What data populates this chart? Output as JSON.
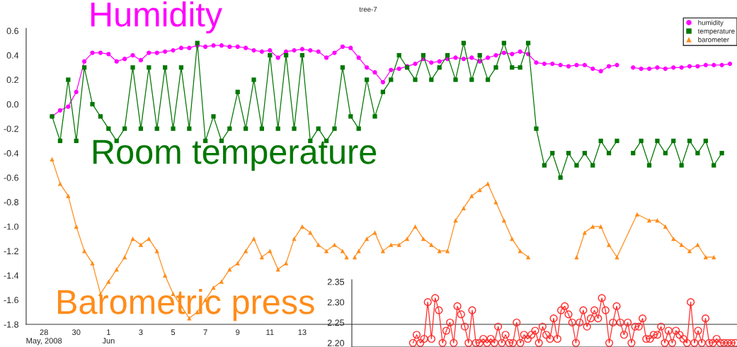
{
  "chart_data": [
    {
      "type": "line",
      "title": "tree-7",
      "annotations": [
        "Humidity",
        "Room temperature",
        "Barometric press"
      ],
      "x": [
        "2008-05-28T12:00",
        "2008-05-29T00:00",
        "2008-05-29T12:00",
        "2008-05-30T00:00",
        "2008-05-30T12:00",
        "2008-05-31T00:00",
        "2008-05-31T12:00",
        "2008-06-01T00:00",
        "2008-06-01T12:00",
        "2008-06-02T00:00",
        "2008-06-02T12:00",
        "2008-06-03T00:00",
        "2008-06-03T12:00",
        "2008-06-04T00:00",
        "2008-06-04T12:00",
        "2008-06-05T00:00",
        "2008-06-05T12:00",
        "2008-06-06T00:00",
        "2008-06-06T12:00",
        "2008-06-07T00:00",
        "2008-06-07T12:00",
        "2008-06-08T00:00",
        "2008-06-08T12:00",
        "2008-06-09T00:00",
        "2008-06-09T12:00",
        "2008-06-10T00:00",
        "2008-06-10T12:00",
        "2008-06-11T00:00",
        "2008-06-11T12:00",
        "2008-06-12T00:00",
        "2008-06-12T12:00",
        "2008-06-13T00:00",
        "2008-06-13T12:00",
        "2008-06-14T00:00",
        "2008-06-14T12:00",
        "2008-06-15T00:00",
        "2008-06-15T12:00",
        "2008-06-16T00:00",
        "2008-06-16T12:00",
        "2008-06-17T00:00",
        "2008-06-17T12:00",
        "2008-06-18T00:00",
        "2008-06-18T12:00",
        "2008-06-19T00:00",
        "2008-06-19T12:00",
        "2008-06-20T00:00",
        "2008-06-20T12:00",
        "2008-06-21T00:00",
        "2008-06-21T12:00",
        "2008-06-22T00:00",
        "2008-06-22T12:00",
        "2008-06-23T00:00",
        "2008-06-23T12:00",
        "2008-06-24T00:00",
        "2008-06-24T12:00",
        "2008-06-25T00:00",
        "2008-06-25T12:00",
        "2008-06-26T00:00",
        "2008-06-26T12:00",
        "2008-06-27T00:00",
        "2008-06-27T12:00",
        "2008-06-28T00:00",
        "2008-06-28T12:00",
        "2008-06-29T00:00",
        "2008-06-29T12:00",
        "2008-06-30T00:00",
        "2008-06-30T12:00",
        "2008-07-01T00:00",
        "2008-07-01T12:00",
        "2008-07-02T00:00",
        "2008-07-02T12:00",
        "2008-07-03T00:00",
        "2008-07-03T12:00",
        "2008-07-04T00:00",
        "2008-07-04T12:00",
        "2008-07-05T00:00",
        "2008-07-05T12:00",
        "2008-07-06T00:00",
        "2008-07-06T12:00",
        "2008-07-07T00:00",
        "2008-07-07T12:00",
        "2008-07-08T00:00",
        "2008-07-08T12:00",
        "2008-07-09T00:00",
        "2008-07-09T12:00"
      ],
      "series": [
        {
          "name": "humidity",
          "color": "#ff00ff",
          "marker": "circle",
          "values": [
            -0.1,
            -0.05,
            -0.02,
            0.1,
            0.35,
            0.42,
            0.42,
            0.41,
            0.35,
            0.37,
            0.4,
            0.36,
            0.42,
            0.42,
            0.43,
            0.44,
            0.46,
            0.46,
            0.48,
            0.47,
            0.48,
            0.48,
            0.47,
            0.47,
            0.46,
            0.44,
            0.43,
            0.44,
            0.38,
            0.43,
            0.44,
            0.45,
            0.44,
            0.43,
            0.38,
            0.42,
            0.47,
            0.46,
            0.38,
            0.3,
            0.26,
            0.18,
            0.28,
            0.29,
            0.31,
            0.33,
            0.37,
            0.34,
            0.35,
            0.37,
            0.38,
            0.37,
            0.38,
            0.35,
            0.38,
            0.4,
            0.42,
            0.41,
            0.43,
            0.41,
            0.34,
            0.33,
            0.33,
            0.32,
            0.31,
            0.32,
            0.32,
            0.29,
            0.27,
            0.31,
            0.32,
            null,
            0.3,
            0.29,
            0.29,
            0.3,
            0.29,
            0.3,
            0.3,
            0.31,
            0.31,
            0.32,
            0.32,
            0.32,
            0.33
          ]
        },
        {
          "name": "temperature",
          "color": "#007700",
          "marker": "square",
          "values": [
            -0.1,
            -0.3,
            0.2,
            -0.3,
            0.3,
            0.0,
            -0.1,
            -0.2,
            -0.3,
            -0.2,
            0.3,
            -0.2,
            0.3,
            -0.2,
            0.3,
            -0.2,
            0.3,
            -0.2,
            0.5,
            -0.3,
            -0.1,
            -0.3,
            -0.2,
            0.1,
            -0.2,
            0.2,
            -0.2,
            0.4,
            -0.2,
            0.4,
            -0.2,
            0.4,
            -0.3,
            -0.2,
            -0.3,
            -0.2,
            0.3,
            -0.1,
            -0.2,
            0.2,
            -0.1,
            0.1,
            0.2,
            0.4,
            0.3,
            0.2,
            0.4,
            0.2,
            0.3,
            0.4,
            0.2,
            0.5,
            0.2,
            0.4,
            0.2,
            0.3,
            0.5,
            0.3,
            0.3,
            0.5,
            -0.2,
            -0.5,
            -0.4,
            -0.6,
            -0.4,
            -0.5,
            -0.4,
            -0.5,
            -0.3,
            -0.4,
            -0.3,
            null,
            -0.4,
            -0.3,
            -0.5,
            -0.3,
            -0.4,
            -0.3,
            -0.5,
            -0.3,
            -0.4,
            -0.3,
            -0.5,
            -0.4,
            null
          ]
        },
        {
          "name": "barometer",
          "color": "#ff8c1a",
          "marker": "triangle",
          "x": [
            "2008-05-28T12:00",
            "2008-05-29T00:00",
            "2008-05-29T12:00",
            "2008-05-30T00:00",
            "2008-05-30T12:00",
            "2008-05-31T00:00",
            "2008-05-31T12:00",
            "2008-06-01T00:00",
            "2008-06-01T12:00",
            "2008-06-02T00:00",
            "2008-06-02T12:00",
            "2008-06-03T00:00",
            "2008-06-03T12:00",
            "2008-06-04T00:00",
            "2008-06-04T12:00",
            "2008-06-05T00:00",
            "2008-06-05T12:00",
            "2008-06-06T00:00",
            "2008-06-06T12:00",
            "2008-06-07T00:00",
            "2008-06-07T12:00",
            "2008-06-08T00:00",
            "2008-06-08T12:00",
            "2008-06-09T00:00",
            "2008-06-09T12:00",
            "2008-06-10T00:00",
            "2008-06-10T12:00",
            "2008-06-11T00:00",
            "2008-06-11T12:00",
            "2008-06-12T00:00",
            "2008-06-12T12:00",
            "2008-06-13T00:00",
            "2008-06-13T12:00",
            "2008-06-14T00:00",
            "2008-06-14T12:00",
            "2008-06-15T00:00",
            "2008-06-15T12:00",
            "2008-06-15T18:00",
            "2008-06-16T00:00",
            "2008-06-16T06:00",
            "2008-06-16T12:00",
            "2008-06-17T00:00",
            "2008-06-17T12:00",
            "2008-06-18T00:00",
            "2008-06-18T12:00",
            "2008-06-19T00:00",
            "2008-06-19T12:00",
            "2008-06-20T00:00",
            "2008-06-20T12:00",
            "2008-06-21T00:00",
            "2008-06-21T12:00",
            "2008-06-22T00:00",
            "2008-06-22T12:00",
            "2008-06-23T00:00",
            "2008-06-23T12:00",
            "2008-06-24T00:00",
            "2008-06-24T12:00",
            "2008-06-25T00:00",
            "2008-06-25T12:00",
            "2008-06-26T00:00",
            "2008-06-26T12:00",
            "2008-06-27T00:00",
            "2008-06-28T12:00",
            "2008-06-30T00:00",
            "2008-06-30T12:00",
            "2008-07-01T00:00",
            "2008-07-01T12:00",
            "2008-07-02T00:00",
            "2008-07-02T12:00",
            "2008-07-03T18:00",
            "2008-07-04T12:00",
            "2008-07-05T00:00",
            "2008-07-05T12:00",
            "2008-07-06T00:00",
            "2008-07-06T12:00",
            "2008-07-07T00:00",
            "2008-07-07T12:00",
            "2008-07-08T00:00",
            "2008-07-08T12:00"
          ],
          "values": [
            -0.45,
            -0.65,
            -0.75,
            -1.0,
            -1.2,
            -1.3,
            -1.55,
            -1.45,
            -1.35,
            -1.25,
            -1.1,
            -1.15,
            -1.1,
            -1.2,
            -1.4,
            -1.55,
            -1.65,
            -1.75,
            -1.7,
            -1.6,
            -1.5,
            -1.45,
            -1.35,
            -1.3,
            -1.2,
            -1.1,
            -1.25,
            -1.2,
            -1.35,
            -1.3,
            -1.1,
            -1.0,
            -1.05,
            -1.15,
            -1.2,
            -1.15,
            -1.2,
            -1.25,
            null,
            -1.25,
            -1.2,
            -1.1,
            -1.05,
            -1.2,
            -1.15,
            -1.15,
            -1.1,
            -1.0,
            -1.1,
            -1.15,
            -1.2,
            -1.2,
            -0.95,
            -0.85,
            -0.75,
            -0.7,
            -0.65,
            -0.8,
            -0.95,
            -1.1,
            -1.2,
            -1.25,
            null,
            -1.25,
            -1.05,
            -1.0,
            -1.0,
            -1.15,
            -1.25,
            -0.9,
            -0.95,
            -0.95,
            -1.0,
            -1.1,
            -1.15,
            -1.2,
            -1.15,
            -1.25,
            -1.25
          ]
        }
      ],
      "xlim": [
        "2008-05-26T21:30",
        "2008-07-09T22:30"
      ],
      "xticks": [
        {
          "value": "2008-05-28",
          "label": "28\nMay, 2008"
        },
        {
          "value": "2008-05-30",
          "label": "30"
        },
        {
          "value": "2008-06-01",
          "label": "1\nJun"
        },
        {
          "value": "2008-06-03",
          "label": "3"
        },
        {
          "value": "2008-06-05",
          "label": "5"
        },
        {
          "value": "2008-06-07",
          "label": "7"
        },
        {
          "value": "2008-06-09",
          "label": "9"
        },
        {
          "value": "2008-06-11",
          "label": "11"
        },
        {
          "value": "2008-06-13",
          "label": "13"
        }
      ],
      "ylim": [
        -1.8,
        0.62
      ],
      "yticks": [
        {
          "value": 0.6,
          "label": "0.6"
        },
        {
          "value": 0.4,
          "label": "0.4"
        },
        {
          "value": 0.2,
          "label": "0.2"
        },
        {
          "value": 0,
          "label": "0.0"
        },
        {
          "value": -0.2,
          "label": "-0.2"
        },
        {
          "value": -0.4,
          "label": "-0.4"
        },
        {
          "value": -0.6,
          "label": "-0.6"
        },
        {
          "value": -0.8,
          "label": "-0.8"
        },
        {
          "value": -1.0,
          "label": "-1.0"
        },
        {
          "value": -1.2,
          "label": "-1.2"
        },
        {
          "value": -1.4,
          "label": "-1.4"
        },
        {
          "value": -1.6,
          "label": "-1.6"
        },
        {
          "value": -1.8,
          "label": "-1.8"
        }
      ],
      "line_style": "solid",
      "grid": false,
      "legend": "top right"
    },
    {
      "type": "line",
      "categories": [
        null,
        null,
        null,
        null,
        null,
        null,
        null,
        null,
        null,
        null,
        null,
        null,
        null,
        null,
        null,
        null,
        null,
        null,
        null,
        null,
        null,
        null,
        null,
        null,
        null,
        null,
        null,
        null,
        null,
        null,
        null,
        null,
        null,
        null,
        null,
        null,
        null,
        null,
        null,
        null,
        null,
        null,
        null,
        null,
        null,
        null,
        null,
        null,
        null,
        null,
        null,
        null,
        null,
        null,
        null,
        null,
        null,
        null,
        null,
        null,
        null,
        null,
        null,
        null,
        null,
        null,
        null,
        null,
        null,
        null,
        null,
        null,
        null,
        null,
        null,
        null,
        null,
        null,
        null,
        null,
        null,
        null,
        null,
        null,
        null,
        null,
        null,
        null,
        null,
        null,
        null,
        null,
        null,
        null,
        null,
        null,
        null,
        null,
        null,
        null,
        null,
        null,
        null,
        null
      ],
      "series": [
        {
          "color": "#ff2a2a",
          "marker": "circle",
          "values": [
            null,
            null,
            null,
            null,
            null,
            null,
            null,
            null,
            null,
            null,
            null,
            null,
            null,
            null,
            null,
            null,
            2.2,
            2.22,
            2.2,
            2.21,
            2.3,
            2.21,
            2.31,
            2.28,
            2.2,
            2.23,
            2.25,
            2.2,
            2.29,
            2.27,
            2.24,
            2.2,
            2.28,
            2.2,
            2.2,
            2.21,
            2.2,
            2.21,
            2.2,
            2.24,
            2.2,
            2.22,
            2.2,
            2.2,
            2.25,
            2.2,
            2.22,
            2.21,
            2.22,
            2.23,
            2.2,
            2.24,
            2.22,
            2.21,
            2.26,
            2.21,
            2.28,
            2.29,
            2.27,
            2.25,
            2.2,
            2.25,
            2.28,
            2.24,
            2.26,
            2.28,
            2.26,
            2.31,
            2.28,
            2.2,
            2.25,
            2.29,
            2.25,
            2.22,
            2.25,
            2.2,
            2.24,
            2.24,
            2.26,
            2.21,
            2.21,
            2.22,
            2.22,
            2.24,
            2.2,
            2.23,
            2.2,
            2.23,
            2.22,
            2.21,
            2.2,
            2.3,
            2.2,
            2.23,
            2.2,
            2.26,
            2.2,
            2.2,
            2.21,
            2.2,
            2.2,
            2.2,
            2.2,
            2.2
          ]
        }
      ],
      "ylim": [
        2.19,
        2.355
      ],
      "yticks": [
        {
          "value": 2.2,
          "label": "2.20"
        },
        {
          "value": 2.25,
          "label": "2.25"
        },
        {
          "value": 2.3,
          "label": "2.30"
        },
        {
          "value": 2.35,
          "label": "2.35"
        }
      ],
      "tick_labels": "y",
      "line_style": "solid",
      "grid": false,
      "legend": false
    }
  ]
}
